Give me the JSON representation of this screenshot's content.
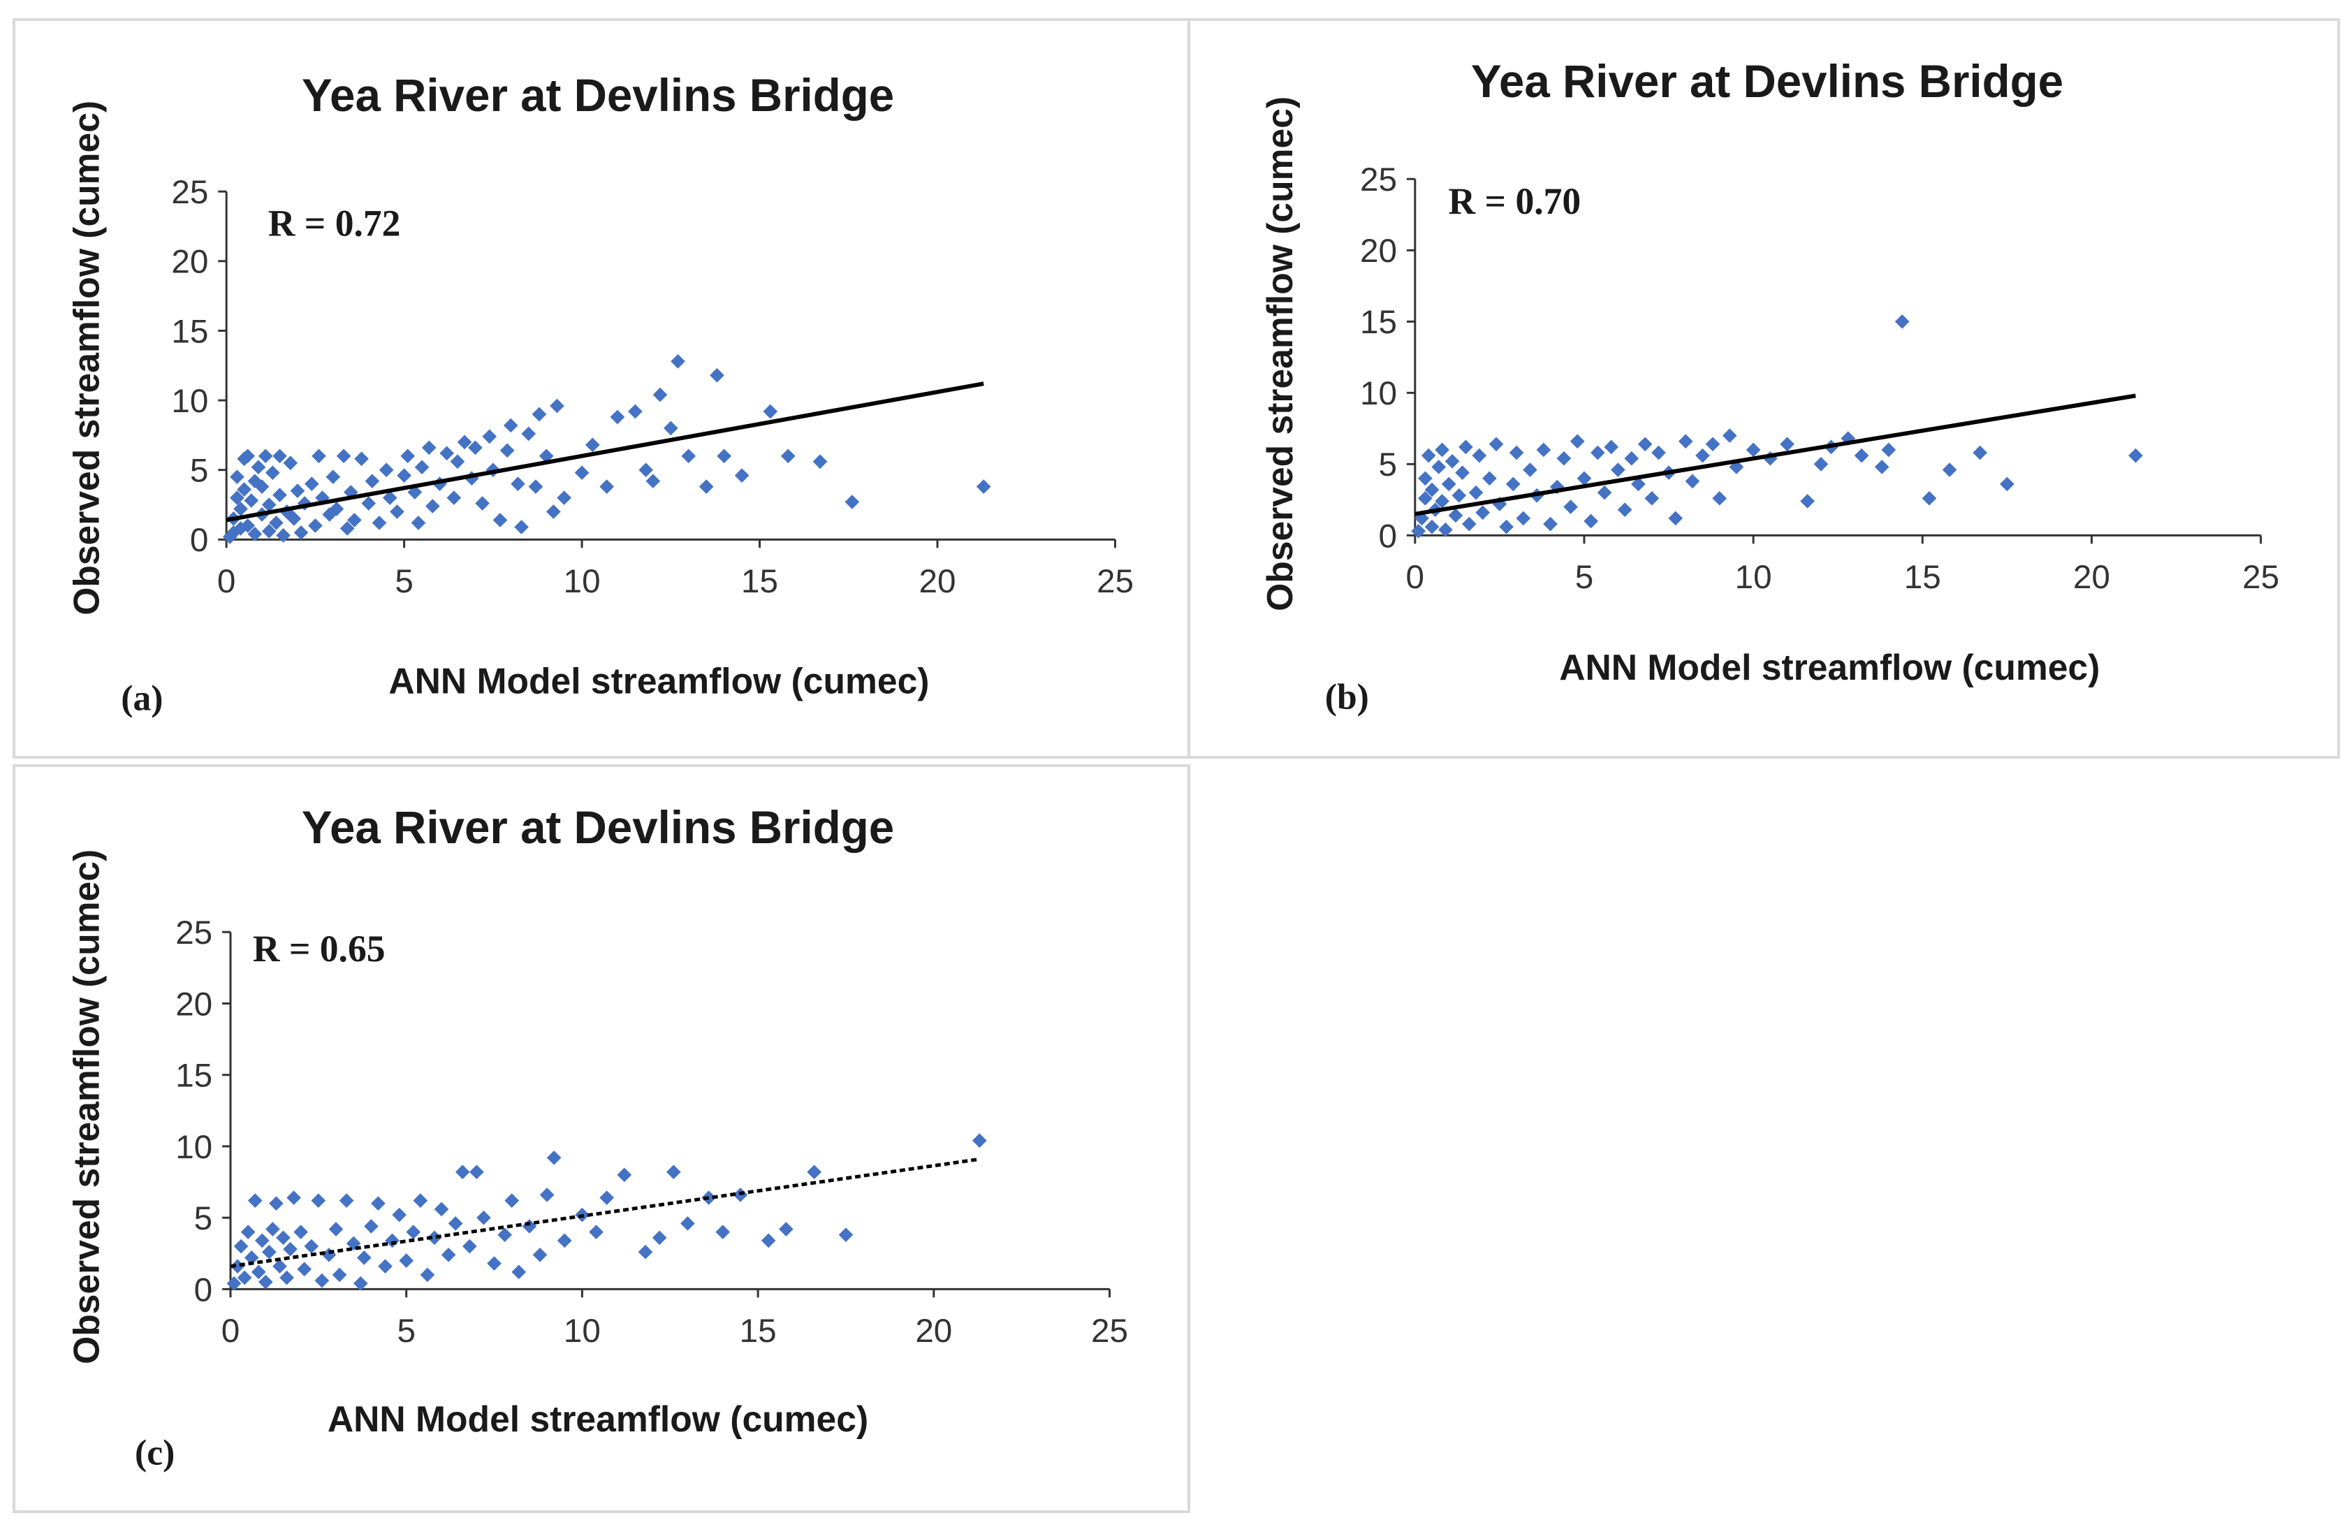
{
  "chart_data": [
    {
      "type": "scatter",
      "panel": "(a)",
      "title": "Yea River at Devlins Bridge",
      "xlabel": "ANN Model streamflow (cumec)",
      "ylabel": "Observed streamflow (cumec)",
      "annotation": "R = 0.72",
      "xlim": [
        0,
        25
      ],
      "ylim": [
        0,
        25
      ],
      "xticks": [
        "0",
        "5",
        "10",
        "15",
        "20",
        "25"
      ],
      "yticks": [
        "0",
        "5",
        "10",
        "15",
        "20",
        "25"
      ],
      "marker_color": "#4472C4",
      "trend_line": {
        "x": [
          0,
          21.3
        ],
        "y": [
          1.4,
          11.2
        ],
        "style": "solid",
        "color": "#000000"
      },
      "points": [
        [
          0.1,
          0.2
        ],
        [
          0.2,
          0.5
        ],
        [
          0.2,
          1.5
        ],
        [
          0.3,
          3.0
        ],
        [
          0.3,
          4.5
        ],
        [
          0.4,
          0.8
        ],
        [
          0.4,
          2.2
        ],
        [
          0.5,
          5.8
        ],
        [
          0.5,
          3.6
        ],
        [
          0.6,
          1.0
        ],
        [
          0.6,
          6.0
        ],
        [
          0.7,
          2.8
        ],
        [
          0.8,
          4.2
        ],
        [
          0.8,
          0.4
        ],
        [
          0.9,
          5.2
        ],
        [
          1.0,
          1.8
        ],
        [
          1.0,
          3.8
        ],
        [
          1.1,
          6.0
        ],
        [
          1.2,
          0.6
        ],
        [
          1.2,
          2.5
        ],
        [
          1.3,
          4.8
        ],
        [
          1.4,
          1.2
        ],
        [
          1.5,
          3.2
        ],
        [
          1.5,
          6.0
        ],
        [
          1.6,
          0.3
        ],
        [
          1.7,
          2.0
        ],
        [
          1.8,
          5.5
        ],
        [
          1.9,
          1.5
        ],
        [
          2.0,
          3.5
        ],
        [
          2.1,
          0.5
        ],
        [
          2.2,
          2.6
        ],
        [
          2.4,
          4.0
        ],
        [
          2.5,
          1.0
        ],
        [
          2.6,
          6.0
        ],
        [
          2.7,
          3.0
        ],
        [
          2.9,
          1.8
        ],
        [
          3.0,
          4.5
        ],
        [
          3.1,
          2.2
        ],
        [
          3.3,
          6.0
        ],
        [
          3.4,
          0.8
        ],
        [
          3.5,
          3.4
        ],
        [
          3.6,
          1.4
        ],
        [
          3.8,
          5.8
        ],
        [
          4.0,
          2.6
        ],
        [
          4.1,
          4.2
        ],
        [
          4.3,
          1.2
        ],
        [
          4.5,
          5.0
        ],
        [
          4.6,
          3.0
        ],
        [
          4.8,
          2.0
        ],
        [
          5.0,
          4.6
        ],
        [
          5.1,
          6.0
        ],
        [
          5.3,
          3.4
        ],
        [
          5.4,
          1.2
        ],
        [
          5.5,
          5.2
        ],
        [
          5.7,
          6.6
        ],
        [
          5.8,
          2.4
        ],
        [
          6.0,
          4.0
        ],
        [
          6.2,
          6.2
        ],
        [
          6.4,
          3.0
        ],
        [
          6.5,
          5.6
        ],
        [
          6.7,
          7.0
        ],
        [
          6.9,
          4.4
        ],
        [
          7.0,
          6.6
        ],
        [
          7.2,
          2.6
        ],
        [
          7.4,
          7.4
        ],
        [
          7.5,
          5.0
        ],
        [
          7.7,
          1.4
        ],
        [
          7.9,
          6.4
        ],
        [
          8.0,
          8.2
        ],
        [
          8.2,
          4.0
        ],
        [
          8.3,
          0.9
        ],
        [
          8.5,
          7.6
        ],
        [
          8.7,
          3.8
        ],
        [
          8.8,
          9.0
        ],
        [
          9.0,
          6.0
        ],
        [
          9.2,
          2.0
        ],
        [
          9.3,
          9.6
        ],
        [
          9.5,
          3.0
        ],
        [
          10.0,
          4.8
        ],
        [
          10.3,
          6.8
        ],
        [
          10.7,
          3.8
        ],
        [
          11.0,
          8.8
        ],
        [
          11.5,
          9.2
        ],
        [
          11.8,
          5.0
        ],
        [
          12.0,
          4.2
        ],
        [
          12.2,
          10.4
        ],
        [
          12.5,
          8.0
        ],
        [
          12.7,
          12.8
        ],
        [
          13.0,
          6.0
        ],
        [
          13.5,
          3.8
        ],
        [
          13.8,
          11.8
        ],
        [
          14.0,
          6.0
        ],
        [
          14.5,
          4.6
        ],
        [
          15.3,
          9.2
        ],
        [
          15.8,
          6.0
        ],
        [
          16.7,
          5.6
        ],
        [
          17.6,
          2.7
        ],
        [
          21.3,
          3.8
        ]
      ]
    },
    {
      "type": "scatter",
      "panel": "(b)",
      "title": "Yea River at Devlins Bridge",
      "xlabel": "ANN Model streamflow (cumec)",
      "ylabel": "Observed streamflow (cumec)",
      "annotation": "R = 0.70",
      "xlim": [
        0,
        25
      ],
      "ylim": [
        0,
        25
      ],
      "xticks": [
        "0",
        "5",
        "10",
        "15",
        "20",
        "25"
      ],
      "yticks": [
        "0",
        "5",
        "10",
        "15",
        "20",
        "25"
      ],
      "marker_color": "#4472C4",
      "trend_line": {
        "x": [
          0,
          21.3
        ],
        "y": [
          1.5,
          9.8
        ],
        "style": "solid",
        "color": "#000000"
      },
      "points": [
        [
          0.1,
          0.3
        ],
        [
          0.2,
          1.2
        ],
        [
          0.3,
          2.6
        ],
        [
          0.3,
          4.0
        ],
        [
          0.4,
          5.6
        ],
        [
          0.5,
          0.6
        ],
        [
          0.5,
          3.2
        ],
        [
          0.6,
          1.8
        ],
        [
          0.7,
          4.8
        ],
        [
          0.8,
          6.0
        ],
        [
          0.8,
          2.4
        ],
        [
          0.9,
          0.4
        ],
        [
          1.0,
          3.6
        ],
        [
          1.1,
          5.2
        ],
        [
          1.2,
          1.4
        ],
        [
          1.3,
          2.8
        ],
        [
          1.4,
          4.4
        ],
        [
          1.5,
          6.2
        ],
        [
          1.6,
          0.8
        ],
        [
          1.8,
          3.0
        ],
        [
          1.9,
          5.6
        ],
        [
          2.0,
          1.6
        ],
        [
          2.2,
          4.0
        ],
        [
          2.4,
          6.4
        ],
        [
          2.5,
          2.2
        ],
        [
          2.7,
          0.6
        ],
        [
          2.9,
          3.6
        ],
        [
          3.0,
          5.8
        ],
        [
          3.2,
          1.2
        ],
        [
          3.4,
          4.6
        ],
        [
          3.6,
          2.8
        ],
        [
          3.8,
          6.0
        ],
        [
          4.0,
          0.8
        ],
        [
          4.2,
          3.4
        ],
        [
          4.4,
          5.4
        ],
        [
          4.6,
          2.0
        ],
        [
          4.8,
          6.6
        ],
        [
          5.0,
          4.0
        ],
        [
          5.2,
          1.0
        ],
        [
          5.4,
          5.8
        ],
        [
          5.6,
          3.0
        ],
        [
          5.8,
          6.2
        ],
        [
          6.0,
          4.6
        ],
        [
          6.2,
          1.8
        ],
        [
          6.4,
          5.4
        ],
        [
          6.6,
          3.6
        ],
        [
          6.8,
          6.4
        ],
        [
          7.0,
          2.6
        ],
        [
          7.2,
          5.8
        ],
        [
          7.5,
          4.4
        ],
        [
          7.7,
          1.2
        ],
        [
          8.0,
          6.6
        ],
        [
          8.2,
          3.8
        ],
        [
          8.5,
          5.6
        ],
        [
          8.8,
          6.4
        ],
        [
          9.0,
          2.6
        ],
        [
          9.3,
          7.0
        ],
        [
          9.5,
          4.8
        ],
        [
          10.0,
          6.0
        ],
        [
          10.5,
          5.4
        ],
        [
          11.0,
          6.4
        ],
        [
          11.6,
          2.4
        ],
        [
          12.0,
          5.0
        ],
        [
          12.3,
          6.2
        ],
        [
          12.8,
          6.8
        ],
        [
          13.2,
          5.6
        ],
        [
          13.8,
          4.8
        ],
        [
          14.0,
          6.0
        ],
        [
          14.4,
          15.0
        ],
        [
          15.2,
          2.6
        ],
        [
          15.8,
          4.6
        ],
        [
          16.7,
          5.8
        ],
        [
          17.5,
          3.6
        ],
        [
          21.3,
          5.6
        ]
      ]
    },
    {
      "type": "scatter",
      "panel": "(c)",
      "title": "Yea River at Devlins Bridge",
      "xlabel": "ANN Model streamflow (cumec)",
      "ylabel": "Observed streamflow (cumec)",
      "annotation": "R = 0.65",
      "xlim": [
        0,
        25
      ],
      "ylim": [
        0,
        25
      ],
      "xticks": [
        "0",
        "5",
        "10",
        "15",
        "20",
        "25"
      ],
      "yticks": [
        "0",
        "5",
        "10",
        "15",
        "20",
        "25"
      ],
      "marker_color": "#4472C4",
      "trend_line": {
        "x": [
          0,
          21.3
        ],
        "y": [
          1.6,
          9.1
        ],
        "style": "dotted",
        "color": "#000000"
      },
      "points": [
        [
          0.1,
          0.4
        ],
        [
          0.2,
          1.6
        ],
        [
          0.3,
          3.0
        ],
        [
          0.4,
          0.8
        ],
        [
          0.5,
          4.0
        ],
        [
          0.6,
          2.2
        ],
        [
          0.7,
          6.2
        ],
        [
          0.8,
          1.2
        ],
        [
          0.9,
          3.4
        ],
        [
          1.0,
          0.5
        ],
        [
          1.1,
          2.6
        ],
        [
          1.2,
          4.2
        ],
        [
          1.3,
          6.0
        ],
        [
          1.4,
          1.6
        ],
        [
          1.5,
          3.6
        ],
        [
          1.6,
          0.8
        ],
        [
          1.7,
          2.8
        ],
        [
          1.8,
          6.4
        ],
        [
          2.0,
          4.0
        ],
        [
          2.1,
          1.4
        ],
        [
          2.3,
          3.0
        ],
        [
          2.5,
          6.2
        ],
        [
          2.6,
          0.6
        ],
        [
          2.8,
          2.4
        ],
        [
          3.0,
          4.2
        ],
        [
          3.1,
          1.0
        ],
        [
          3.3,
          6.2
        ],
        [
          3.5,
          3.2
        ],
        [
          3.7,
          0.4
        ],
        [
          3.8,
          2.2
        ],
        [
          4.0,
          4.4
        ],
        [
          4.2,
          6.0
        ],
        [
          4.4,
          1.6
        ],
        [
          4.6,
          3.4
        ],
        [
          4.8,
          5.2
        ],
        [
          5.0,
          2.0
        ],
        [
          5.2,
          4.0
        ],
        [
          5.4,
          6.2
        ],
        [
          5.6,
          1.0
        ],
        [
          5.8,
          3.6
        ],
        [
          6.0,
          5.6
        ],
        [
          6.2,
          2.4
        ],
        [
          6.4,
          4.6
        ],
        [
          6.6,
          8.2
        ],
        [
          6.8,
          3.0
        ],
        [
          7.0,
          8.2
        ],
        [
          7.2,
          5.0
        ],
        [
          7.5,
          1.8
        ],
        [
          7.8,
          3.8
        ],
        [
          8.0,
          6.2
        ],
        [
          8.2,
          1.2
        ],
        [
          8.5,
          4.4
        ],
        [
          8.8,
          2.4
        ],
        [
          9.0,
          6.6
        ],
        [
          9.2,
          9.2
        ],
        [
          9.5,
          3.4
        ],
        [
          10.0,
          5.2
        ],
        [
          10.4,
          4.0
        ],
        [
          10.7,
          6.4
        ],
        [
          11.2,
          8.0
        ],
        [
          11.8,
          2.6
        ],
        [
          12.2,
          3.6
        ],
        [
          12.6,
          8.2
        ],
        [
          13.0,
          4.6
        ],
        [
          13.6,
          6.4
        ],
        [
          14.0,
          4.0
        ],
        [
          14.5,
          6.6
        ],
        [
          15.3,
          3.4
        ],
        [
          15.8,
          4.2
        ],
        [
          16.6,
          8.2
        ],
        [
          17.5,
          3.8
        ],
        [
          21.3,
          10.4
        ]
      ]
    }
  ]
}
